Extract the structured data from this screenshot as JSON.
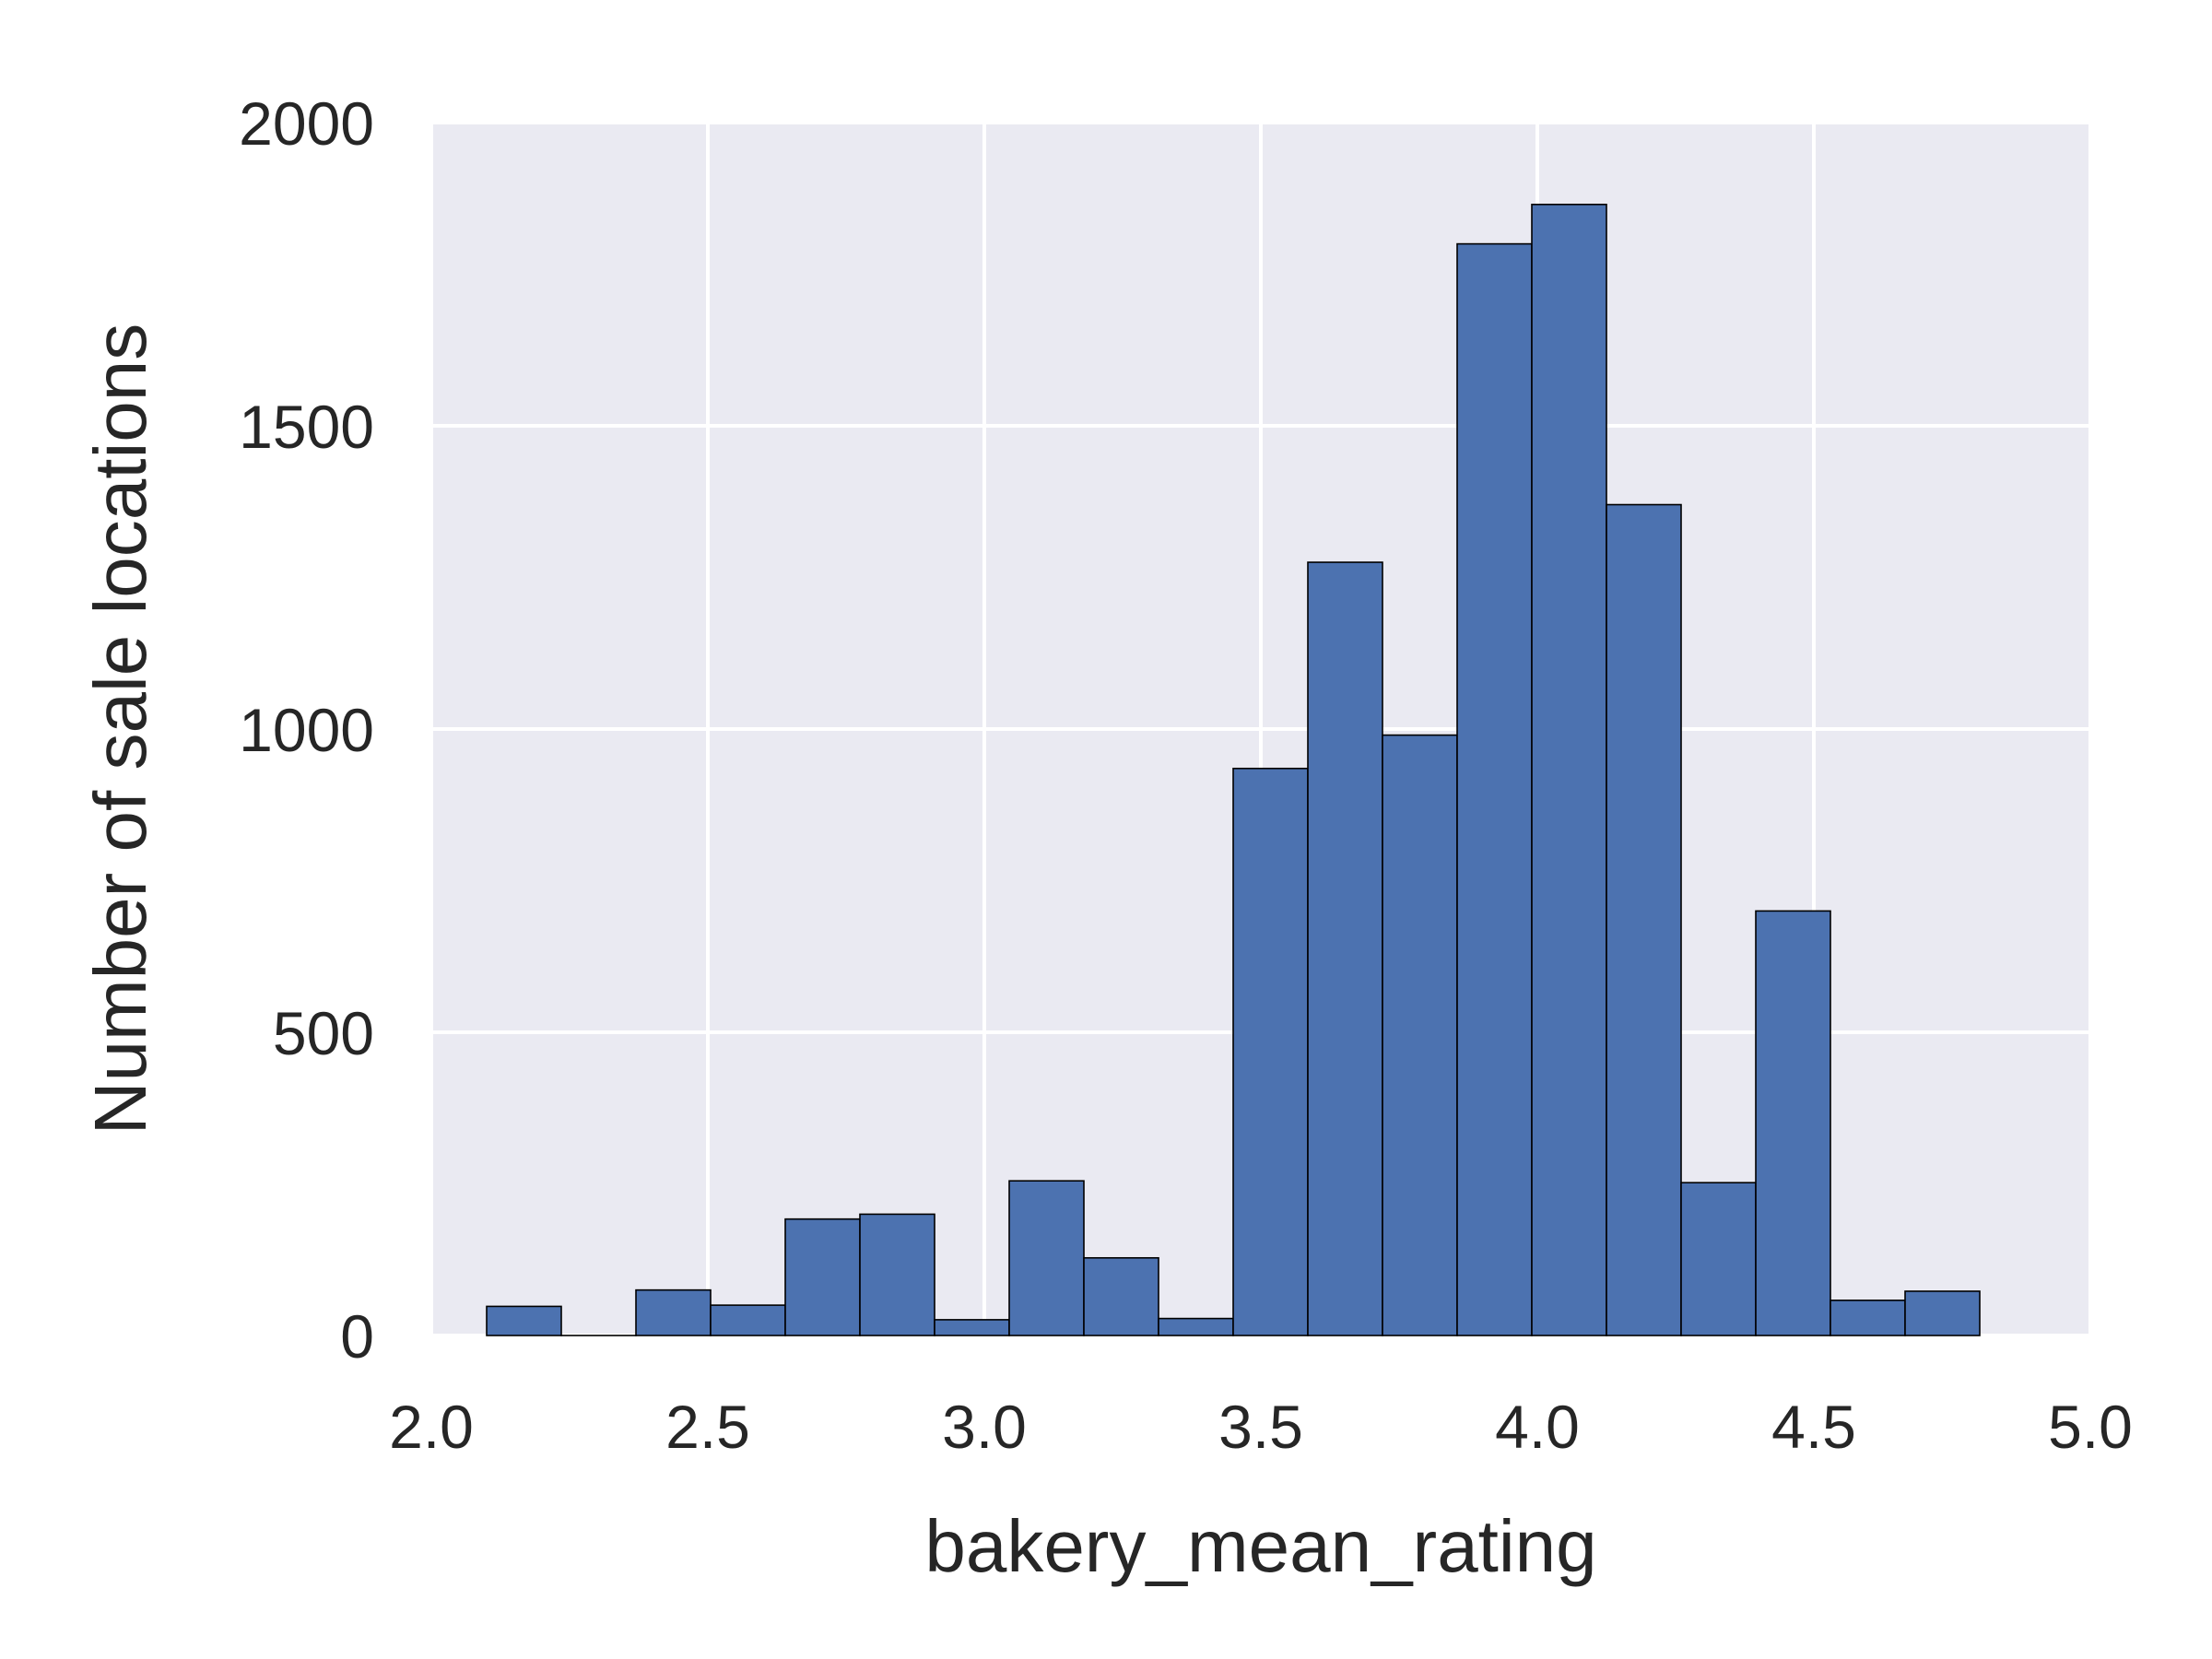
{
  "chart_data": {
    "type": "bar",
    "subtype": "histogram",
    "title": "",
    "xlabel": "bakery_mean_rating",
    "ylabel": "Number of sale locations",
    "xlim": [
      2.0,
      5.0
    ],
    "ylim": [
      0,
      2000
    ],
    "xticks": [
      "2.0",
      "2.5",
      "3.0",
      "3.5",
      "4.0",
      "4.5",
      "5.0"
    ],
    "yticks": [
      "0",
      "500",
      "1000",
      "1500",
      "2000"
    ],
    "grid": true,
    "bin_edges": [
      2.1,
      2.235,
      2.37,
      2.505,
      2.64,
      2.775,
      2.91,
      3.045,
      3.18,
      3.315,
      3.45,
      3.585,
      3.72,
      3.855,
      3.99,
      4.125,
      4.26,
      4.395,
      4.53,
      4.665,
      4.8
    ],
    "values": [
      48,
      0,
      75,
      50,
      192,
      200,
      26,
      255,
      128,
      28,
      935,
      1275,
      990,
      1800,
      1865,
      1370,
      252,
      700,
      58,
      73
    ],
    "colors": {
      "bar": "#4c72b0",
      "bar_edge": "#000000",
      "plot_background": "#eaeaf2",
      "grid": "#ffffff",
      "text": "#262626"
    }
  }
}
